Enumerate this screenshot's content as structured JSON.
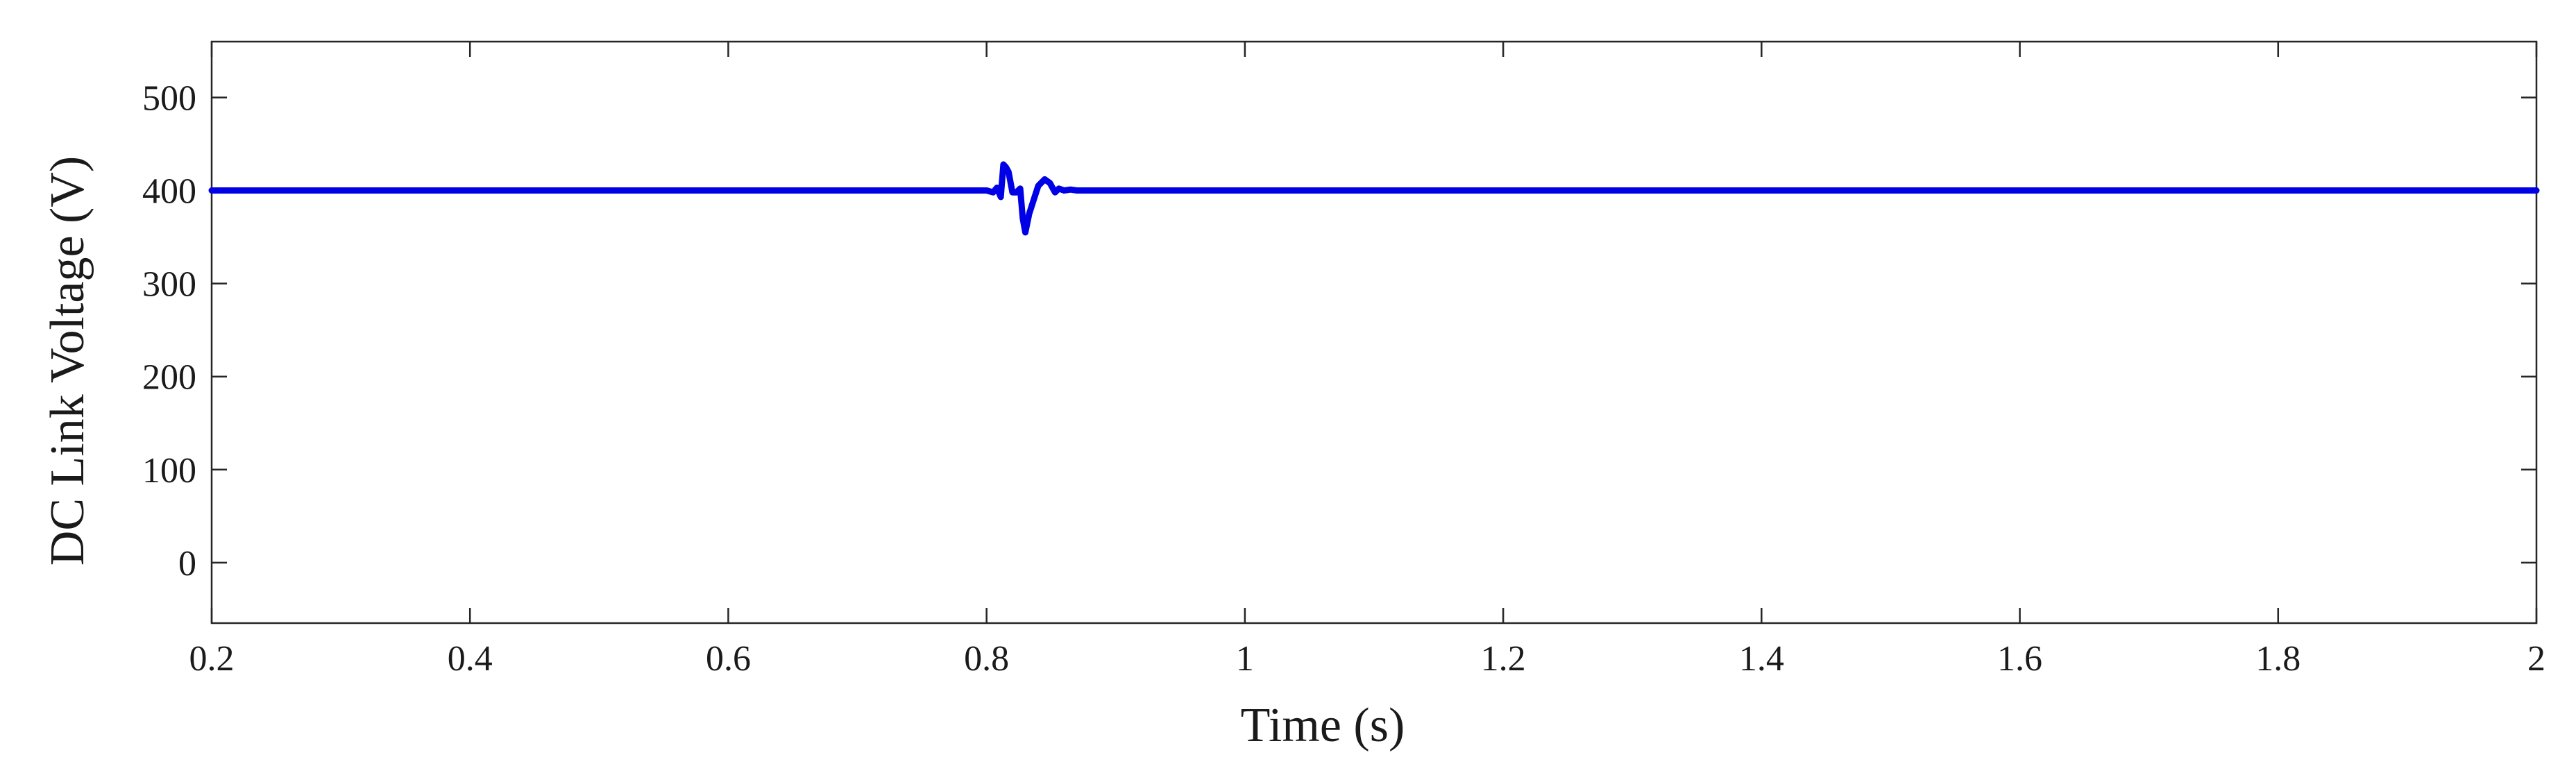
{
  "chart_data": {
    "type": "line",
    "xlabel": "Time (s)",
    "ylabel": "DC Link Voltage (V)",
    "xlim": [
      0.2,
      2.0
    ],
    "ylim": [
      -65,
      560
    ],
    "xticks": [
      0.2,
      0.4,
      0.6,
      0.8,
      1.0,
      1.2,
      1.4,
      1.6,
      1.8,
      2.0
    ],
    "xtick_labels": [
      "0.2",
      "0.4",
      "0.6",
      "0.8",
      "1",
      "1.2",
      "1.4",
      "1.6",
      "1.8",
      "2"
    ],
    "yticks": [
      0,
      100,
      200,
      300,
      400,
      500
    ],
    "ytick_labels": [
      "0",
      "100",
      "200",
      "300",
      "400",
      "500"
    ],
    "grid": false,
    "colors": {
      "series": "#0000e6",
      "axes": "#262626"
    },
    "series": [
      {
        "x": [
          0.2,
          0.8,
          0.805,
          0.808,
          0.811,
          0.813,
          0.815,
          0.817,
          0.82,
          0.823,
          0.826,
          0.828,
          0.83,
          0.833,
          0.836,
          0.84,
          0.845,
          0.849,
          0.853,
          0.856,
          0.86,
          0.865,
          0.87,
          1.0,
          1.5,
          2.0
        ],
        "y": [
          400,
          400,
          398,
          403,
          393,
          428,
          425,
          420,
          398,
          398,
          402,
          370,
          355,
          375,
          388,
          405,
          412,
          408,
          398,
          402,
          400,
          401,
          400,
          400,
          400,
          400
        ]
      }
    ]
  }
}
